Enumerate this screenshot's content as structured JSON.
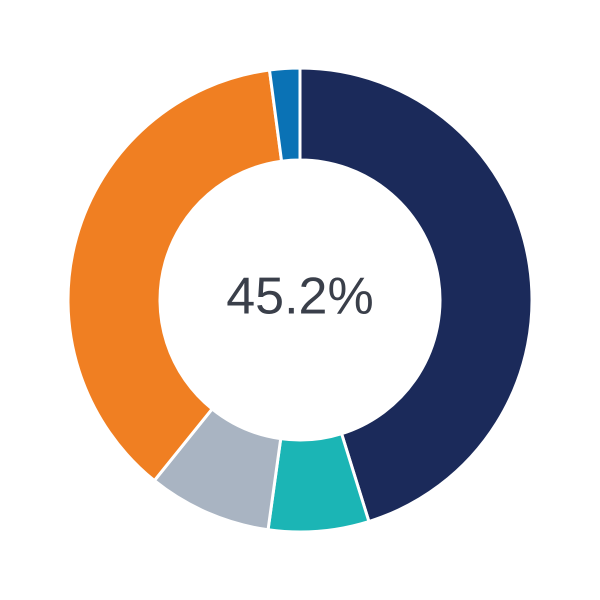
{
  "chart_data": {
    "type": "donut",
    "values": [
      45.2,
      7.0,
      8.6,
      37.1,
      2.1
    ],
    "colors": [
      "#1b2a5a",
      "#1bb5b5",
      "#a9b4c2",
      "#f07f22",
      "#0a72b5"
    ],
    "center_label": "45.2%"
  }
}
